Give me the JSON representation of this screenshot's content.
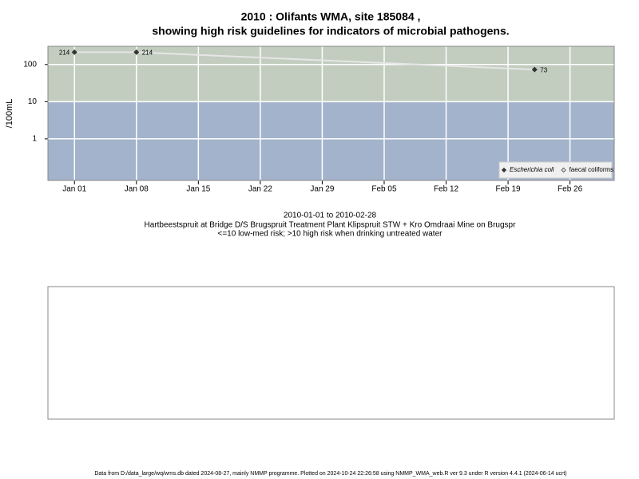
{
  "chart_data": {
    "type": "scatter",
    "title": "2010 : Olifants WMA, site 185084 ,",
    "subtitle": "showing high risk guidelines for indicators of microbial pathogens.",
    "y_label": "/100mL",
    "period": "2010-01-01 to 2010-02-28",
    "site": "Hartbeestspruit at Bridge D/S Brugspruit Treatment Plant Klipspruit STW + Kro Omdraai Mine on Brugspr",
    "guideline_note": "<=10 low-med risk; >10 high risk when drinking untreated water",
    "footer": "Data from D:/data_large/wq/wms.db dated 2024-08-27, mainly NMMP programme. Plotted on 2024-10-24 22:26:58 using NMMP_WMA_web.R ver 9.3 under R version 4.4.1 (2024-06-14 ucrt)",
    "log_scale": true,
    "grid": true,
    "threshold": 10,
    "above_color": "#c2cdc0",
    "below_color": "#a3b3cb",
    "legend_position": "bottom-right",
    "xlim": [
      "2009-12-29",
      "2010-03-03"
    ],
    "xticks": [
      {
        "value": "2010-01-01",
        "label": "Jan 01"
      },
      {
        "value": "2010-01-08",
        "label": "Jan 08"
      },
      {
        "value": "2010-01-15",
        "label": "Jan 15"
      },
      {
        "value": "2010-01-22",
        "label": "Jan 22"
      },
      {
        "value": "2010-01-29",
        "label": "Jan 29"
      },
      {
        "value": "2010-02-05",
        "label": "Feb 05"
      },
      {
        "value": "2010-02-12",
        "label": "Feb 12"
      },
      {
        "value": "2010-02-19",
        "label": "Feb 19"
      },
      {
        "value": "2010-02-26",
        "label": "Feb 26"
      }
    ],
    "ylim": [
      0.076,
      309
    ],
    "yticks": [
      1,
      10,
      100
    ],
    "series": [
      {
        "name": "Escherichia coli",
        "color": "#333333",
        "line_color": "#e6e6e6",
        "x": [
          "2010-01-01",
          "2010-01-08",
          "2010-02-22"
        ],
        "values": [
          214,
          214,
          73
        ],
        "value_labels": [
          "214",
          "214",
          "73"
        ]
      },
      {
        "name": "faecal coliforms",
        "color": "#333333",
        "x": [],
        "values": []
      }
    ]
  }
}
